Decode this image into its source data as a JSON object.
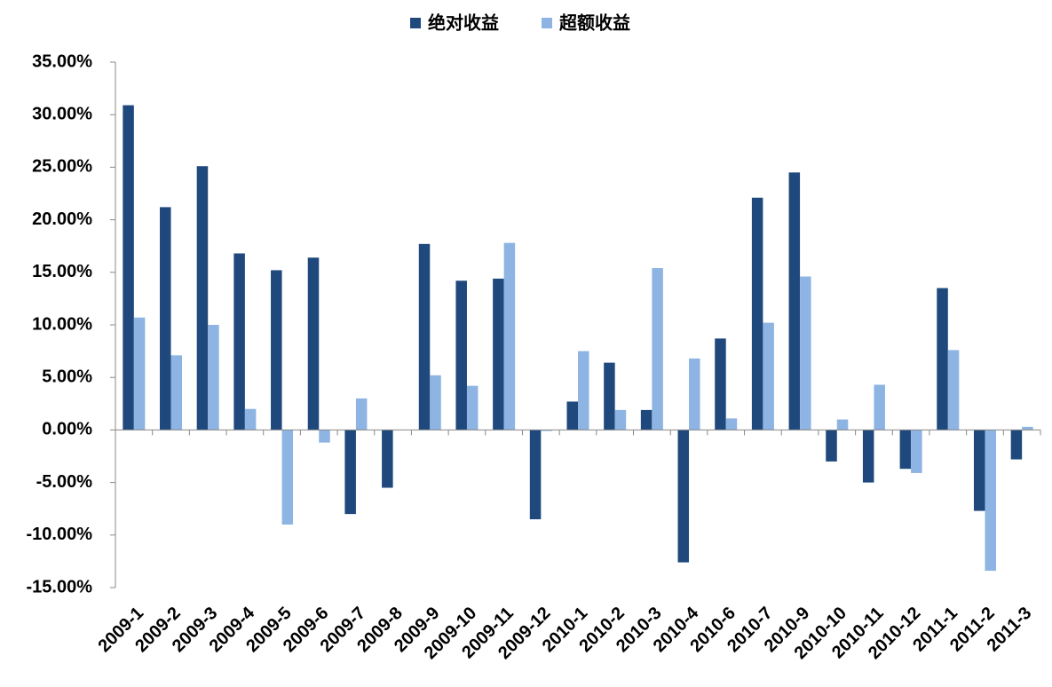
{
  "chart_data": {
    "type": "bar",
    "categories": [
      "2009-1",
      "2009-2",
      "2009-3",
      "2009-4",
      "2009-5",
      "2009-6",
      "2009-7",
      "2009-8",
      "2009-9",
      "2009-10",
      "2009-11",
      "2009-12",
      "2010-1",
      "2010-2",
      "2010-3",
      "2010-4",
      "2010-6",
      "2010-7",
      "2010-9",
      "2010-10",
      "2010-11",
      "2010-12",
      "2011-1",
      "2011-2",
      "2011-3"
    ],
    "series": [
      {
        "name": "绝对收益",
        "color": "#1f497d",
        "values": [
          30.9,
          21.2,
          25.1,
          16.8,
          15.2,
          16.4,
          -8.0,
          -5.5,
          17.7,
          14.2,
          14.4,
          -8.5,
          2.7,
          6.4,
          1.9,
          -12.6,
          8.7,
          22.1,
          24.5,
          -3.0,
          -5.0,
          -3.7,
          13.5,
          -7.7,
          -2.8
        ]
      },
      {
        "name": "超额收益",
        "color": "#8db4e2",
        "values": [
          10.7,
          7.1,
          10.0,
          2.0,
          -9.0,
          -1.2,
          3.0,
          0,
          5.2,
          4.2,
          17.8,
          -0.1,
          7.5,
          1.9,
          15.4,
          6.8,
          1.1,
          10.2,
          14.6,
          1.0,
          4.3,
          -4.1,
          7.6,
          -13.4,
          0.3
        ]
      }
    ],
    "ylim": [
      -15,
      35
    ],
    "yticks": [
      {
        "value": -15,
        "label": "-15.00%"
      },
      {
        "value": -10,
        "label": "-10.00%"
      },
      {
        "value": -5,
        "label": "-5.00%"
      },
      {
        "value": 0,
        "label": "0.00%"
      },
      {
        "value": 5,
        "label": "5.00%"
      },
      {
        "value": 10,
        "label": "10.00%"
      },
      {
        "value": 15,
        "label": "15.00%"
      },
      {
        "value": 20,
        "label": "20.00%"
      },
      {
        "value": 25,
        "label": "25.00%"
      },
      {
        "value": 30,
        "label": "30.00%"
      },
      {
        "value": 35,
        "label": "35.00%"
      }
    ],
    "legend": "top"
  }
}
